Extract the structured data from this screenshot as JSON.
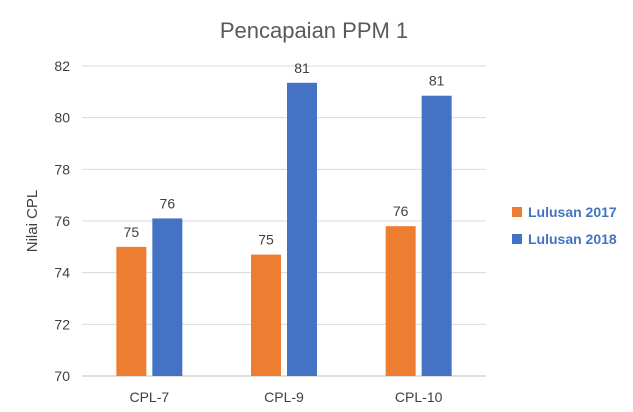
{
  "chart_data": {
    "type": "bar",
    "title": "Pencapaian PPM 1",
    "xlabel": "",
    "ylabel": "Nilai CPL",
    "categories": [
      "CPL-7",
      "CPL-9",
      "CPL-10"
    ],
    "ylim": [
      70,
      82
    ],
    "yticks": [
      70,
      72,
      74,
      76,
      78,
      80,
      82
    ],
    "grid": true,
    "legend_position": "right",
    "series": [
      {
        "name": "Lulusan 2017",
        "color": "#ed7d31",
        "values": [
          75.0,
          74.7,
          75.8
        ],
        "labels": [
          "75",
          "75",
          "76"
        ]
      },
      {
        "name": "Lulusan 2018",
        "color": "#4472c4",
        "values": [
          76.1,
          81.35,
          80.85
        ],
        "labels": [
          "76",
          "81",
          "81"
        ]
      }
    ]
  }
}
